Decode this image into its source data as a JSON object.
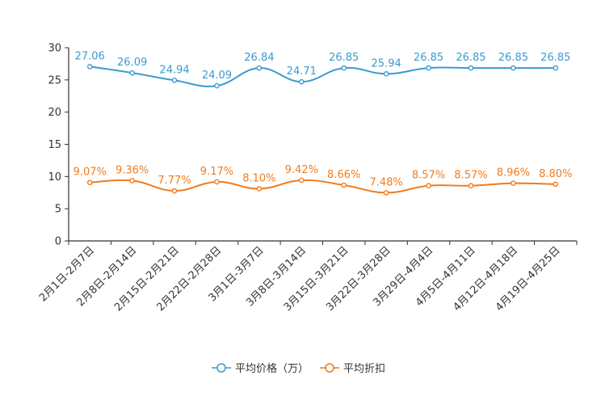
{
  "chart_data": {
    "type": "line",
    "title": "",
    "xlabel": "",
    "ylabel": "",
    "ylim": [
      0,
      30
    ],
    "yticks": [
      0,
      5,
      10,
      15,
      20,
      25,
      30
    ],
    "grid": false,
    "legend_position": "bottom-center",
    "categories": [
      "2月1日-2月7日",
      "2月8日-2月14日",
      "2月15日-2月21日",
      "2月22日-2月28日",
      "3月1日-3月7日",
      "3月8日-3月14日",
      "3月15日-3月21日",
      "3月22日-3月28日",
      "3月29日-4月4日",
      "4月5日-4月11日",
      "4月12日-4月18日",
      "4月19日-4月25日"
    ],
    "series": [
      {
        "name": "平均价格（万）",
        "color": "#3a9bd0",
        "values": [
          27.06,
          26.09,
          24.94,
          24.09,
          26.84,
          24.71,
          26.85,
          25.94,
          26.85,
          26.85,
          26.85,
          26.85
        ],
        "labels": [
          "27.06",
          "26.09",
          "24.94",
          "24.09",
          "26.84",
          "24.71",
          "26.85",
          "25.94",
          "26.85",
          "26.85",
          "26.85",
          "26.85"
        ]
      },
      {
        "name": "平均折扣",
        "color": "#f07c1e",
        "values": [
          9.07,
          9.36,
          7.77,
          9.17,
          8.1,
          9.42,
          8.66,
          7.48,
          8.57,
          8.57,
          8.96,
          8.8
        ],
        "labels": [
          "9.07%",
          "9.36%",
          "7.77%",
          "9.17%",
          "8.10%",
          "9.42%",
          "8.66%",
          "7.48%",
          "8.57%",
          "8.57%",
          "8.96%",
          "8.80%"
        ]
      }
    ]
  }
}
